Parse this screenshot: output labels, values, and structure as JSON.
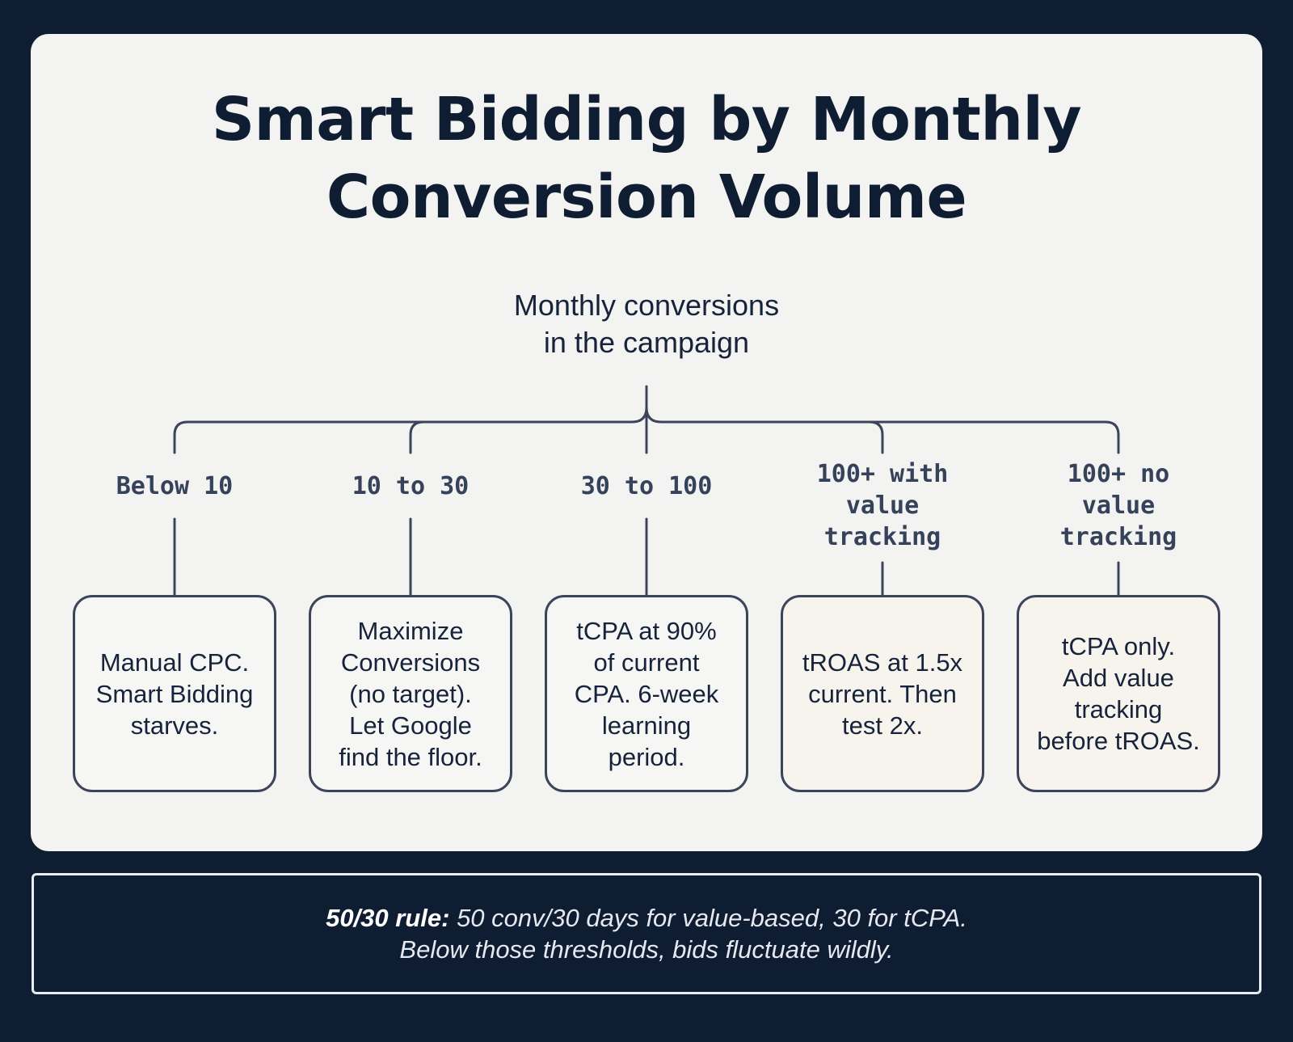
{
  "title": {
    "line1": "Smart Bidding by Monthly",
    "line2": "Conversion Volume"
  },
  "root": {
    "line1": "Monthly conversions",
    "line2": "in the campaign"
  },
  "branches": [
    {
      "label": [
        "Below 10"
      ],
      "recommendation": [
        "Manual CPC.",
        "Smart Bidding",
        "starves."
      ]
    },
    {
      "label": [
        "10 to 30"
      ],
      "recommendation": [
        "Maximize",
        "Conversions",
        "(no target).",
        "Let Google",
        "find the floor."
      ]
    },
    {
      "label": [
        "30 to 100"
      ],
      "recommendation": [
        "tCPA at 90%",
        "of current",
        "CPA. 6-week",
        "learning",
        "period."
      ]
    },
    {
      "label": [
        "100+ with",
        "value",
        "tracking"
      ],
      "recommendation": [
        "tROAS at 1.5x",
        "current. Then",
        "test 2x."
      ]
    },
    {
      "label": [
        "100+ no",
        "value",
        "tracking"
      ],
      "recommendation": [
        "tCPA only.",
        "Add value",
        "tracking",
        "before tROAS."
      ]
    }
  ],
  "footer": {
    "rule_label": "50/30 rule:",
    "rule_text": " 50 conv/30 days for value-based, 30 for tCPA.",
    "line2": "Below those thresholds, bids fluctuate wildly."
  }
}
